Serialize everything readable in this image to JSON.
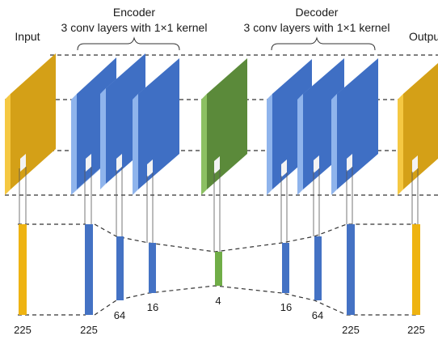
{
  "labels": {
    "input": "Input",
    "output": "Output",
    "encoder_title": "Encoder",
    "encoder_desc": "3 conv layers with 1×1 kernel",
    "decoder_title": "Decoder",
    "decoder_desc": "3 conv layers with 1×1 kernel"
  },
  "dimensions": {
    "input": "225",
    "enc1": "225",
    "enc2": "64",
    "enc3": "16",
    "bottleneck": "4",
    "dec1": "16",
    "dec2": "64",
    "dec3": "225",
    "output": "225"
  },
  "colors": {
    "input_output": "#d4a017",
    "input_output_edge": "#f5c842",
    "conv": "#3f6fc4",
    "conv_edge": "#8fb4ec",
    "bottleneck": "#5b8a3a",
    "bottleneck_edge": "#8cc062",
    "pixel": "#f3f3f3"
  }
}
